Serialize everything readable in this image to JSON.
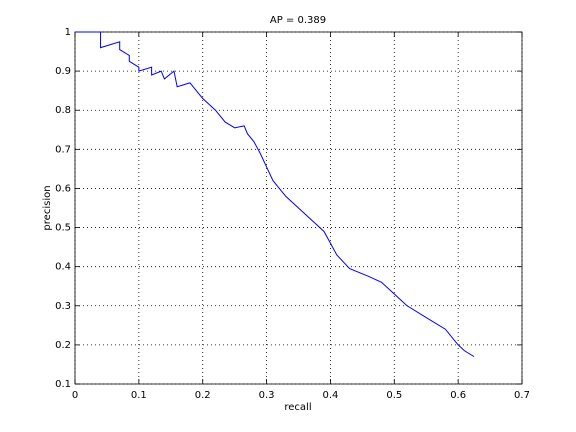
{
  "chart_data": {
    "type": "line",
    "title": "AP = 0.389",
    "x_label": "recall",
    "y_label": "precision",
    "x": [
      0,
      0.04,
      0.04,
      0.07,
      0.07,
      0.085,
      0.085,
      0.1,
      0.1,
      0.12,
      0.12,
      0.135,
      0.14,
      0.155,
      0.16,
      0.18,
      0.19,
      0.2,
      0.22,
      0.235,
      0.25,
      0.265,
      0.27,
      0.28,
      0.29,
      0.3,
      0.31,
      0.33,
      0.35,
      0.37,
      0.39,
      0.41,
      0.43,
      0.46,
      0.48,
      0.5,
      0.52,
      0.55,
      0.58,
      0.6,
      0.61,
      0.625
    ],
    "values": [
      1,
      1,
      0.96,
      0.975,
      0.955,
      0.94,
      0.925,
      0.91,
      0.9,
      0.91,
      0.89,
      0.9,
      0.88,
      0.9,
      0.86,
      0.87,
      0.85,
      0.83,
      0.8,
      0.77,
      0.755,
      0.76,
      0.74,
      0.72,
      0.69,
      0.655,
      0.62,
      0.58,
      0.55,
      0.52,
      0.49,
      0.43,
      0.395,
      0.375,
      0.36,
      0.33,
      0.3,
      0.27,
      0.24,
      0.2,
      0.185,
      0.17
    ],
    "color": "#0000ff",
    "xlim": [
      0,
      0.7
    ],
    "xticks": [
      0,
      0.1,
      0.2,
      0.3,
      0.4,
      0.5,
      0.6,
      0.7
    ],
    "ylim": [
      0.1,
      1
    ],
    "yticks": [
      0.1,
      0.2,
      0.3,
      0.4,
      0.5,
      0.6,
      0.7,
      0.8,
      0.9,
      1
    ],
    "grid": true
  }
}
